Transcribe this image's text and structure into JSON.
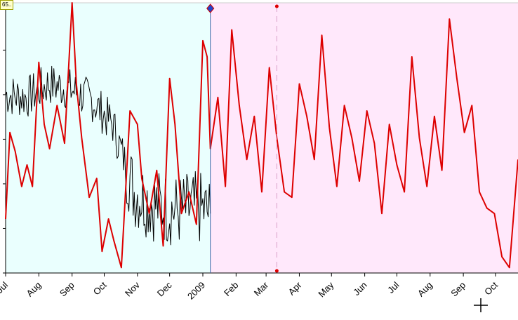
{
  "value_box": {
    "text": "65.."
  },
  "chart_data": {
    "type": "line",
    "title": "",
    "xlabel": "",
    "ylabel": "",
    "grid": false,
    "x_tick_labels": [
      "Jul",
      "Aug",
      "Sep",
      "Oct",
      "Nov",
      "Dec",
      "2009",
      "Feb",
      "Mar",
      "Apr",
      "May",
      "Jun",
      "Jul",
      "Aug",
      "Sep",
      "Oct"
    ],
    "x_tick_dates": [
      "2008-07-01",
      "2008-08-01",
      "2008-09-01",
      "2008-10-01",
      "2008-11-01",
      "2008-12-01",
      "2009-01-01",
      "2009-02-01",
      "2009-03-01",
      "2009-04-01",
      "2009-05-01",
      "2009-06-01",
      "2009-07-01",
      "2009-08-01",
      "2009-09-01",
      "2009-10-01"
    ],
    "x_range": [
      "2008-07-01",
      "2009-10-22"
    ],
    "y_range": [
      0,
      100
    ],
    "regions": [
      {
        "name": "historical",
        "from": "2008-07-01",
        "to": "2009-01-08",
        "color": "#eafffe"
      },
      {
        "name": "forecast",
        "from": "2009-01-08",
        "to": "2009-10-22",
        "color": "#ffe8fb"
      }
    ],
    "split_date": "2009-01-08",
    "marker_date": "2009-03-11",
    "series": [
      {
        "color": "#000000",
        "x": [
          "2008-07-01",
          "2008-07-21",
          "2008-08-10",
          "2008-08-30",
          "2008-09-19",
          "2008-10-09",
          "2008-10-29",
          "2008-11-18",
          "2008-12-08",
          "2008-12-28",
          "2009-01-08"
        ],
        "y": [
          66,
          65,
          70,
          68,
          64,
          55,
          30,
          25,
          23,
          24,
          22
        ]
      },
      {
        "color": "#dd0000",
        "x": [
          "2008-07-01",
          "2008-07-05",
          "2008-07-10",
          "2008-07-16",
          "2008-07-21",
          "2008-07-26",
          "2008-08-01",
          "2008-08-06",
          "2008-08-11",
          "2008-08-18",
          "2008-08-25",
          "2008-09-01",
          "2008-09-05",
          "2008-09-10",
          "2008-09-17",
          "2008-09-24",
          "2008-09-29",
          "2008-10-05",
          "2008-10-10",
          "2008-10-17",
          "2008-10-25",
          "2008-11-01",
          "2008-11-05",
          "2008-11-12",
          "2008-11-19",
          "2008-11-25",
          "2008-12-01",
          "2008-12-06",
          "2008-12-12",
          "2008-12-19",
          "2008-12-26",
          "2009-01-01",
          "2009-01-05",
          "2009-01-08",
          "2009-01-15",
          "2009-01-22",
          "2009-01-28",
          "2009-02-04",
          "2009-02-11",
          "2009-02-18",
          "2009-02-25",
          "2009-03-04",
          "2009-03-11",
          "2009-03-18",
          "2009-03-25",
          "2009-04-01",
          "2009-04-08",
          "2009-04-15",
          "2009-04-22",
          "2009-04-29",
          "2009-05-06",
          "2009-05-13",
          "2009-05-20",
          "2009-05-27",
          "2009-06-03",
          "2009-06-10",
          "2009-06-17",
          "2009-06-24",
          "2009-07-01",
          "2009-07-08",
          "2009-07-15",
          "2009-07-22",
          "2009-07-29",
          "2009-08-05",
          "2009-08-12",
          "2009-08-19",
          "2009-08-26",
          "2009-09-02",
          "2009-09-09",
          "2009-09-16",
          "2009-09-23",
          "2009-09-30",
          "2009-10-07",
          "2009-10-14",
          "2009-10-22"
        ],
        "y": [
          20,
          52,
          45,
          32,
          40,
          32,
          78,
          55,
          46,
          62,
          48,
          100,
          70,
          50,
          28,
          35,
          8,
          20,
          12,
          2,
          60,
          55,
          35,
          22,
          38,
          10,
          72,
          55,
          22,
          30,
          18,
          86,
          80,
          46,
          65,
          32,
          90,
          62,
          42,
          58,
          30,
          76,
          50,
          30,
          28,
          70,
          58,
          42,
          88,
          54,
          32,
          62,
          50,
          34,
          60,
          48,
          22,
          55,
          40,
          30,
          80,
          50,
          32,
          58,
          38,
          94,
          72,
          52,
          62,
          30,
          24,
          22,
          6,
          2,
          42
        ]
      }
    ]
  }
}
